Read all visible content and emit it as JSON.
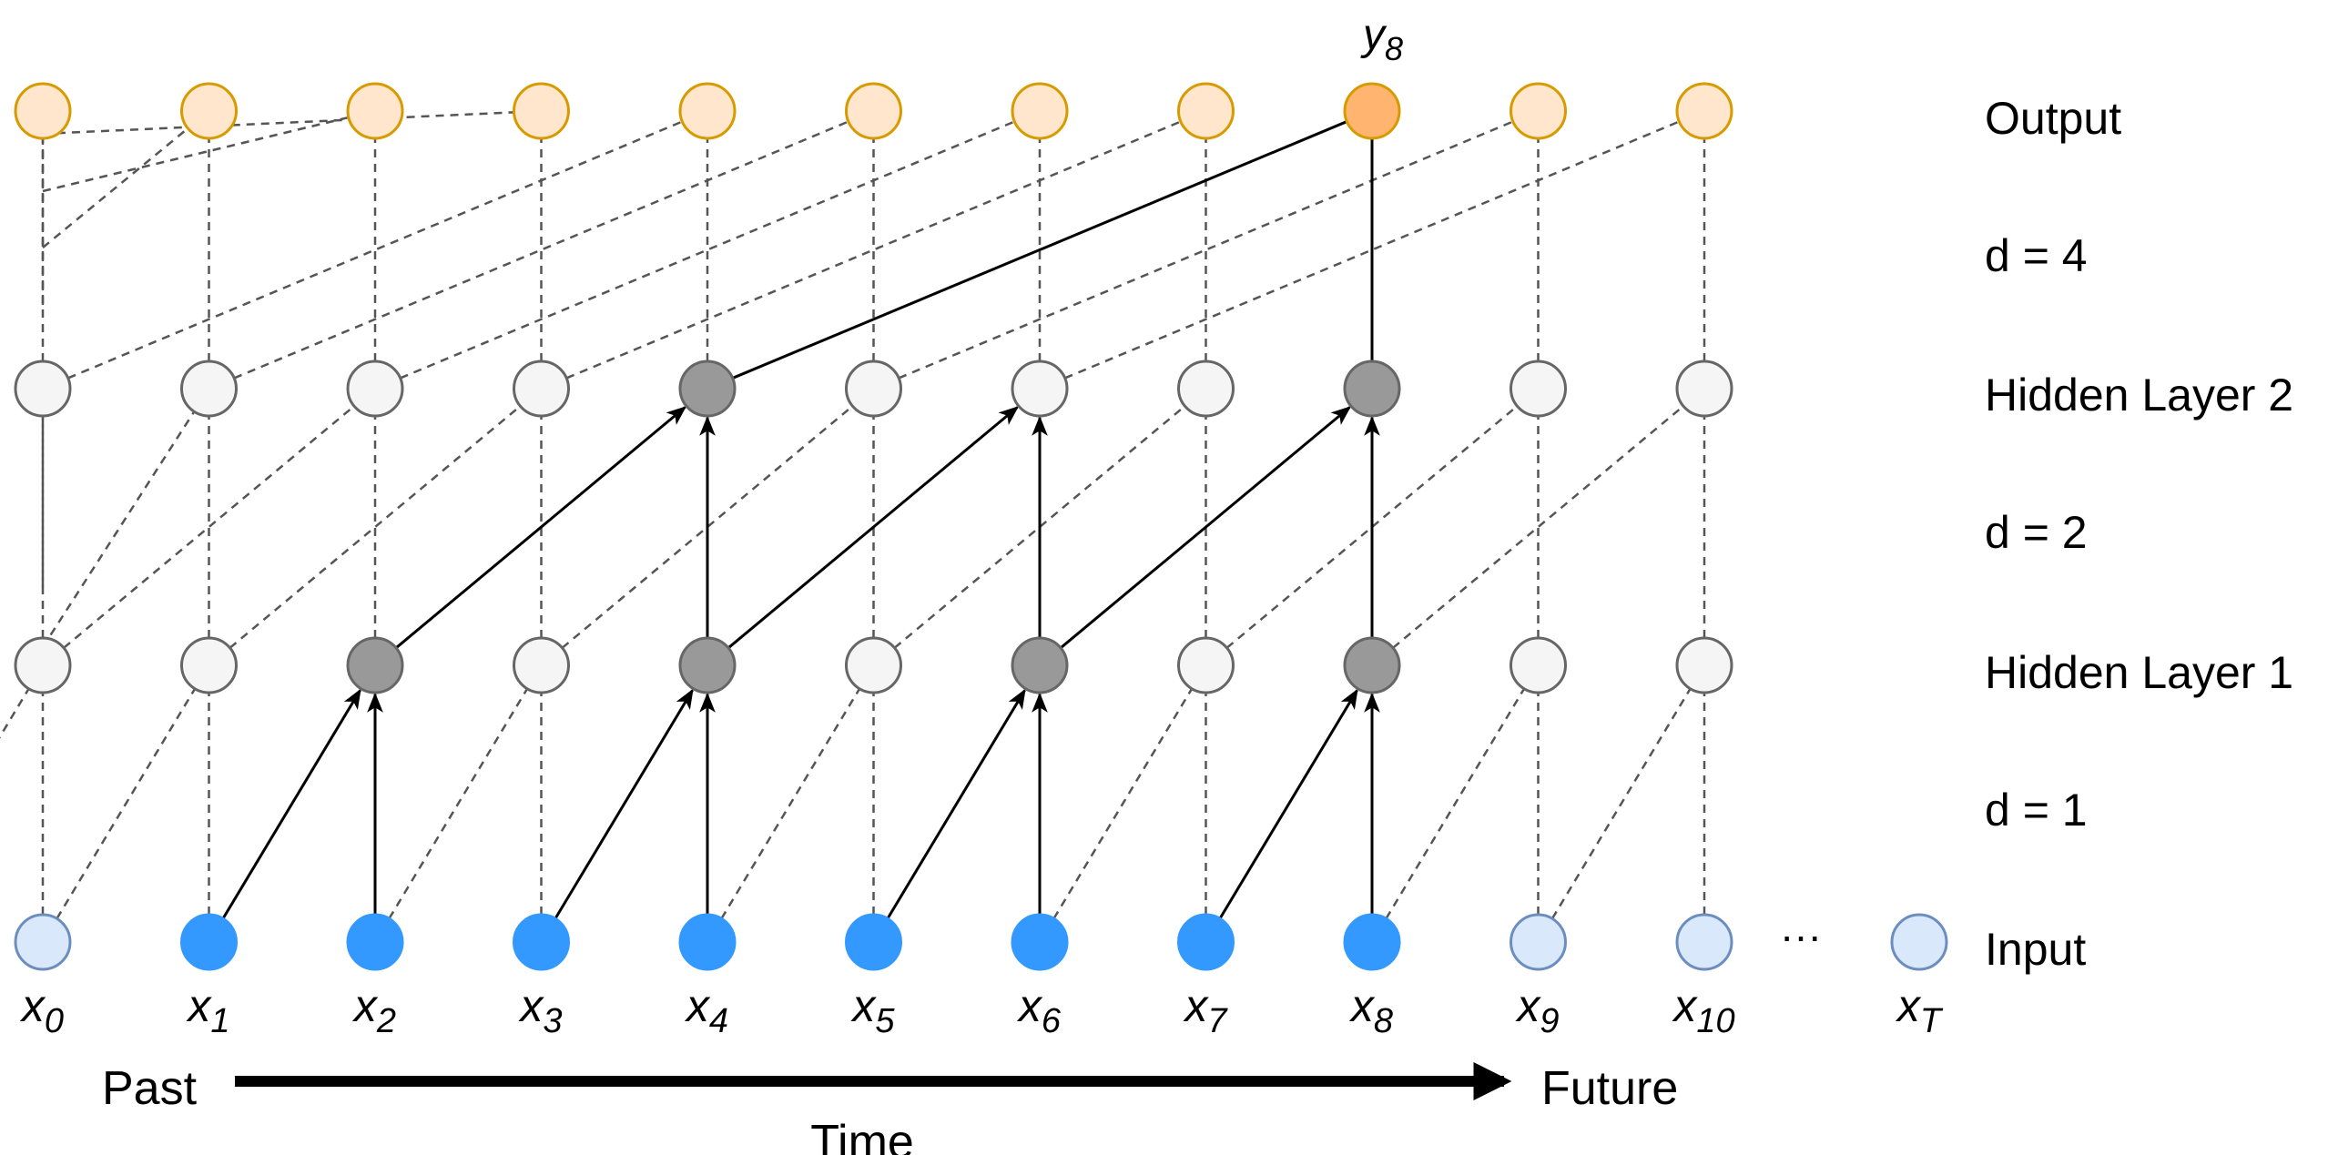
{
  "title": "",
  "colors": {
    "output_node_fill": "#FFE6CC",
    "output_node_stroke": "#D79B00",
    "output_highlight_fill": "#FFB570",
    "hidden_node_fill": "#F5F5F5",
    "hidden_node_stroke": "#666666",
    "hidden_active_fill": "#999999",
    "input_inactive_fill": "#DAE8FC",
    "input_inactive_stroke": "#6C8EBF",
    "input_active_fill": "#3399FF",
    "dashed_line": "#555555",
    "solid_line": "#000000"
  },
  "layer_labels": {
    "output": "Output",
    "d4": "d = 4",
    "hidden2": "Hidden Layer 2",
    "d2": "d = 2",
    "hidden1": "Hidden Layer 1",
    "d1": "d = 1",
    "input": "Input"
  },
  "dilations": {
    "d1": 1,
    "d2": 2,
    "d4": 4
  },
  "input_labels": [
    {
      "base": "x",
      "sub": "0"
    },
    {
      "base": "x",
      "sub": "1"
    },
    {
      "base": "x",
      "sub": "2"
    },
    {
      "base": "x",
      "sub": "3"
    },
    {
      "base": "x",
      "sub": "4"
    },
    {
      "base": "x",
      "sub": "5"
    },
    {
      "base": "x",
      "sub": "6"
    },
    {
      "base": "x",
      "sub": "7"
    },
    {
      "base": "x",
      "sub": "8"
    },
    {
      "base": "x",
      "sub": "9"
    },
    {
      "base": "x",
      "sub": "10"
    }
  ],
  "final_input_label": {
    "base": "x",
    "sub": "T"
  },
  "ellipsis": "···",
  "output_label": {
    "base": "y",
    "sub": "8"
  },
  "time_axis": {
    "past": "Past",
    "future": "Future",
    "time": "Time"
  },
  "active": {
    "input": [
      1,
      2,
      3,
      4,
      5,
      6,
      7,
      8
    ],
    "hidden1": [
      2,
      4,
      6,
      8
    ],
    "hidden2": [
      4,
      8
    ],
    "output": [
      8
    ]
  }
}
